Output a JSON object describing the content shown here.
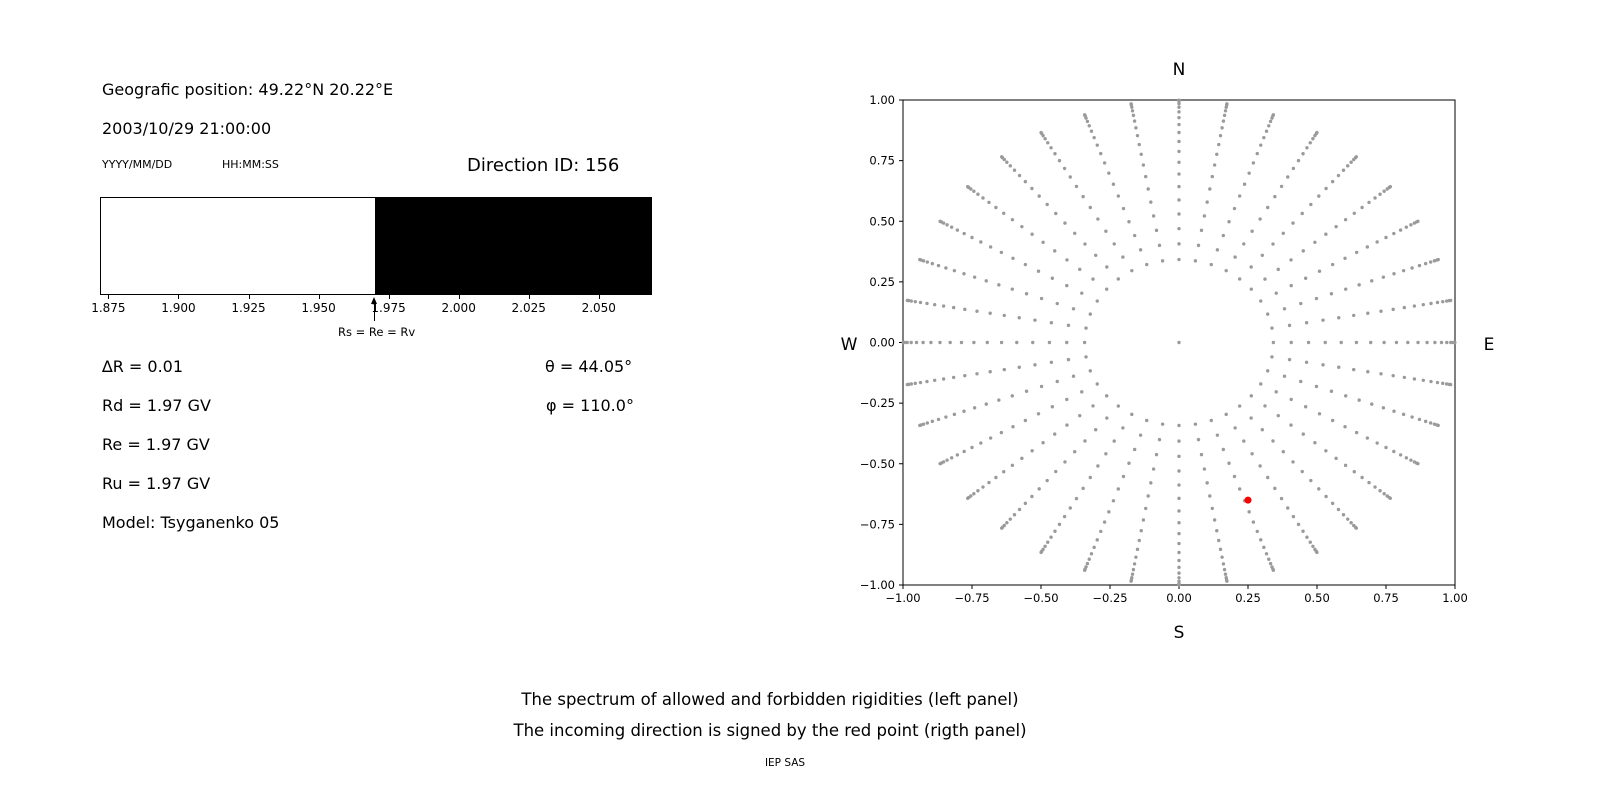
{
  "header": {
    "position": "Geografic position: 49.22°N 20.22°E",
    "datetime": "2003/10/29 21:00:00",
    "date_format_label": "YYYY/MM/DD",
    "time_format_label": "HH:MM:SS",
    "direction_id": "Direction ID: 156"
  },
  "info": {
    "delta_r": "∆R = 0.01",
    "rd": "Rd = 1.97 GV",
    "re": "Re = 1.97 GV",
    "ru": "Ru = 1.97 GV",
    "model": "Model: Tsyganenko 05",
    "theta": "θ = 44.05°",
    "phi": "φ = 110.0°"
  },
  "captions": {
    "line1": "The spectrum of allowed and forbidden rigidities (left panel)",
    "line2": "The incoming direction is signed by the red point (rigth panel)",
    "credit": "IEP SAS"
  },
  "chart_data": [
    {
      "id": "rigidity-spectrum",
      "type": "area",
      "description": "Allowed (white) and forbidden (black) rigidity spectrum",
      "x_min": 1.872,
      "x_max": 2.069,
      "regions": [
        {
          "name": "allowed",
          "from": 1.872,
          "to": 1.97,
          "color": "#ffffff"
        },
        {
          "name": "forbidden",
          "from": 1.97,
          "to": 2.069,
          "color": "#000000"
        }
      ],
      "tick_values": [
        1.875,
        1.9,
        1.925,
        1.95,
        1.975,
        2.0,
        2.025,
        2.05
      ],
      "tick_labels": [
        "1.875",
        "1.900",
        "1.925",
        "1.950",
        "1.975",
        "2.000",
        "2.025",
        "2.050"
      ],
      "annotation": {
        "value": 1.97,
        "label": "Rs = Re = Rv"
      },
      "grid": false
    },
    {
      "id": "incoming-direction",
      "type": "scatter",
      "description": "Grid of viewing directions; red point marks the incoming direction",
      "xlim": [
        -1.0,
        1.0
      ],
      "ylim": [
        -1.0,
        1.0
      ],
      "x_tick_values": [
        -1.0,
        -0.75,
        -0.5,
        -0.25,
        0.0,
        0.25,
        0.5,
        0.75,
        1.0
      ],
      "x_tick_labels": [
        "−1.00",
        "−0.75",
        "−0.50",
        "−0.25",
        "0.00",
        "0.25",
        "0.50",
        "0.75",
        "1.00"
      ],
      "y_tick_values": [
        1.0,
        0.75,
        0.5,
        0.25,
        0.0,
        -0.25,
        -0.5,
        -0.75,
        -1.0
      ],
      "y_tick_labels": [
        "1.00",
        "0.75",
        "0.50",
        "0.25",
        "0.00",
        "−0.25",
        "−0.50",
        "−0.75",
        "−1.00"
      ],
      "compass": {
        "top": "N",
        "bottom": "S",
        "left": "W",
        "right": "E"
      },
      "direction_grid": {
        "azimuth_start_deg": 0,
        "azimuth_step_deg": 10,
        "azimuth_count": 36,
        "zenith_start_deg": 20,
        "zenith_step_deg": 4,
        "zenith_count": 18,
        "radius_rule": "sin(zenith_deg)",
        "marker_color": "#9a9a9a",
        "center_point": true
      },
      "red_point": {
        "x": 0.25,
        "y": -0.65,
        "color": "#ff0000"
      },
      "grid": false
    }
  ]
}
